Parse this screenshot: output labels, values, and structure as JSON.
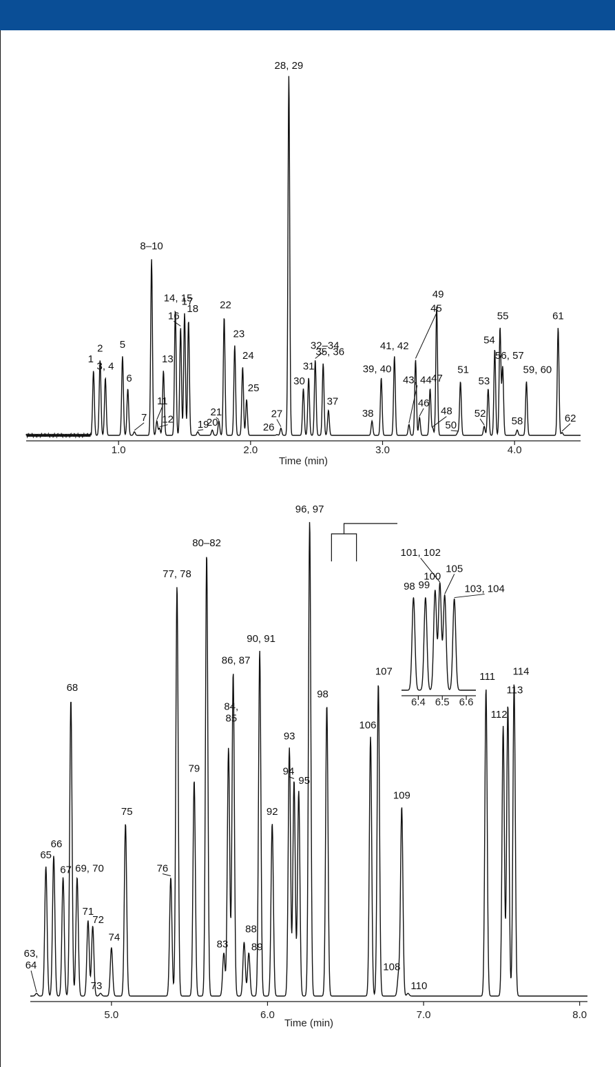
{
  "colors": {
    "header": "#0a4e96",
    "trace": "#111111",
    "axis": "#1a1a1a"
  },
  "chart_data": [
    {
      "type": "line",
      "xlabel": "Time (min)",
      "ylabel": "",
      "xlim": [
        0.3,
        4.5
      ],
      "ylim": [
        0,
        100
      ],
      "xticks": [
        "1.0",
        "2.0",
        "3.0",
        "4.0"
      ],
      "tick_values": [
        1.0,
        2.0,
        3.0,
        4.0
      ],
      "grid": false,
      "peaks": [
        {
          "label": "1",
          "x": 0.81,
          "y": 18
        },
        {
          "label": "2",
          "x": 0.86,
          "y": 21
        },
        {
          "label": "3, 4",
          "x": 0.9,
          "y": 16
        },
        {
          "label": "5",
          "x": 1.03,
          "y": 22
        },
        {
          "label": "6",
          "x": 1.07,
          "y": 13
        },
        {
          "label": "7",
          "x": 1.12,
          "y": 1
        },
        {
          "label": "8–10",
          "x": 1.25,
          "y": 49
        },
        {
          "label": "11",
          "x": 1.29,
          "y": 4
        },
        {
          "label": "12",
          "x": 1.31,
          "y": 2
        },
        {
          "label": "13",
          "x": 1.34,
          "y": 18
        },
        {
          "label": "14, 15",
          "x": 1.43,
          "y": 35
        },
        {
          "label": "16",
          "x": 1.47,
          "y": 30
        },
        {
          "label": "17",
          "x": 1.5,
          "y": 34
        },
        {
          "label": "18",
          "x": 1.53,
          "y": 32
        },
        {
          "label": "19",
          "x": 1.6,
          "y": 1
        },
        {
          "label": "20",
          "x": 1.71,
          "y": 1.5
        },
        {
          "label": "21",
          "x": 1.76,
          "y": 4
        },
        {
          "label": "22",
          "x": 1.8,
          "y": 33
        },
        {
          "label": "23",
          "x": 1.88,
          "y": 25
        },
        {
          "label": "24",
          "x": 1.94,
          "y": 19
        },
        {
          "label": "25",
          "x": 1.97,
          "y": 10
        },
        {
          "label": "26",
          "x": 2.2,
          "y": 0.2
        },
        {
          "label": "27",
          "x": 2.23,
          "y": 2
        },
        {
          "label": "28, 29",
          "x": 2.29,
          "y": 100
        },
        {
          "label": "30",
          "x": 2.4,
          "y": 13
        },
        {
          "label": "31",
          "x": 2.44,
          "y": 16
        },
        {
          "label": "32–34",
          "x": 2.49,
          "y": 21
        },
        {
          "label": "35, 36",
          "x": 2.55,
          "y": 20
        },
        {
          "label": "37",
          "x": 2.59,
          "y": 7
        },
        {
          "label": "38",
          "x": 2.92,
          "y": 4
        },
        {
          "label": "39, 40",
          "x": 2.99,
          "y": 16
        },
        {
          "label": "41, 42",
          "x": 3.09,
          "y": 22
        },
        {
          "label": "43, 44",
          "x": 3.2,
          "y": 3
        },
        {
          "label": "45",
          "x": 3.25,
          "y": 21
        },
        {
          "label": "46",
          "x": 3.28,
          "y": 5
        },
        {
          "label": "47",
          "x": 3.36,
          "y": 13
        },
        {
          "label": "48",
          "x": 3.38,
          "y": 2
        },
        {
          "label": "49",
          "x": 3.41,
          "y": 36
        },
        {
          "label": "50",
          "x": 3.57,
          "y": 0.8
        },
        {
          "label": "51",
          "x": 3.59,
          "y": 15
        },
        {
          "label": "52",
          "x": 3.77,
          "y": 2.5
        },
        {
          "label": "53",
          "x": 3.8,
          "y": 13
        },
        {
          "label": "54",
          "x": 3.85,
          "y": 24
        },
        {
          "label": "55",
          "x": 3.89,
          "y": 30
        },
        {
          "label": "56, 57",
          "x": 3.91,
          "y": 19
        },
        {
          "label": "58",
          "x": 4.02,
          "y": 1.5
        },
        {
          "label": "59, 60",
          "x": 4.09,
          "y": 15
        },
        {
          "label": "61",
          "x": 4.33,
          "y": 30
        },
        {
          "label": "62",
          "x": 4.36,
          "y": 0.8
        }
      ]
    },
    {
      "type": "line",
      "xlabel": "Time (min)",
      "ylabel": "",
      "xlim": [
        4.48,
        8.05
      ],
      "ylim": [
        0,
        100
      ],
      "xticks": [
        "5.0",
        "6.0",
        "7.0",
        "8.0"
      ],
      "tick_values": [
        5.0,
        6.0,
        7.0,
        8.0
      ],
      "grid": false,
      "peaks": [
        {
          "label": "63,\n64",
          "x": 4.52,
          "y": 0.5
        },
        {
          "label": "65",
          "x": 4.58,
          "y": 24
        },
        {
          "label": "66",
          "x": 4.63,
          "y": 26
        },
        {
          "label": "67",
          "x": 4.69,
          "y": 22
        },
        {
          "label": "68",
          "x": 4.74,
          "y": 55
        },
        {
          "label": "69, 70",
          "x": 4.78,
          "y": 22
        },
        {
          "label": "71",
          "x": 4.85,
          "y": 14
        },
        {
          "label": "72",
          "x": 4.88,
          "y": 13
        },
        {
          "label": "73",
          "x": 4.93,
          "y": 0.5
        },
        {
          "label": "74",
          "x": 5.0,
          "y": 9
        },
        {
          "label": "75",
          "x": 5.09,
          "y": 32
        },
        {
          "label": "76",
          "x": 5.38,
          "y": 22
        },
        {
          "label": "77, 78",
          "x": 5.42,
          "y": 76
        },
        {
          "label": "79",
          "x": 5.53,
          "y": 40
        },
        {
          "label": "80–82",
          "x": 5.61,
          "y": 82
        },
        {
          "label": "83",
          "x": 5.72,
          "y": 8
        },
        {
          "label": "84,\n85",
          "x": 5.75,
          "y": 46
        },
        {
          "label": "86, 87",
          "x": 5.78,
          "y": 60
        },
        {
          "label": "88",
          "x": 5.85,
          "y": 10
        },
        {
          "label": "89",
          "x": 5.88,
          "y": 8
        },
        {
          "label": "90, 91",
          "x": 5.95,
          "y": 64
        },
        {
          "label": "92",
          "x": 6.03,
          "y": 32
        },
        {
          "label": "93",
          "x": 6.14,
          "y": 46
        },
        {
          "label": "94",
          "x": 6.17,
          "y": 40
        },
        {
          "label": "95",
          "x": 6.2,
          "y": 38
        },
        {
          "label": "96, 97",
          "x": 6.27,
          "y": 88
        },
        {
          "label": "98",
          "x": 6.38,
          "y": 54
        },
        {
          "label": "106",
          "x": 6.66,
          "y": 48
        },
        {
          "label": "107",
          "x": 6.71,
          "y": 58
        },
        {
          "label": "108",
          "x": 6.84,
          "y": 4
        },
        {
          "label": "109",
          "x": 6.86,
          "y": 35
        },
        {
          "label": "110",
          "x": 6.9,
          "y": 0.5
        },
        {
          "label": "111",
          "x": 7.4,
          "y": 57
        },
        {
          "label": "112",
          "x": 7.51,
          "y": 50
        },
        {
          "label": "113",
          "x": 7.54,
          "y": 54
        },
        {
          "label": "114",
          "x": 7.58,
          "y": 58
        }
      ]
    },
    {
      "type": "line",
      "inset": true,
      "xlabel": "",
      "ylabel": "",
      "xlim": [
        6.33,
        6.64
      ],
      "ylim": [
        0,
        100
      ],
      "xticks": [
        "6.4",
        "6.5",
        "6.6"
      ],
      "tick_values": [
        6.4,
        6.5,
        6.6
      ],
      "grid": false,
      "peaks": [
        {
          "label": "98",
          "x": 6.38,
          "y": 78
        },
        {
          "label": "99",
          "x": 6.43,
          "y": 78
        },
        {
          "label": "100",
          "x": 6.47,
          "y": 84
        },
        {
          "label": "101, 102",
          "x": 6.49,
          "y": 90
        },
        {
          "label": "105",
          "x": 6.51,
          "y": 80
        },
        {
          "label": "103, 104",
          "x": 6.55,
          "y": 77
        }
      ]
    }
  ]
}
